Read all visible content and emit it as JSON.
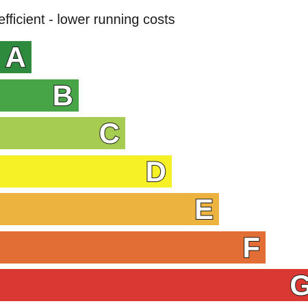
{
  "header": {
    "text": "efficient - lower running costs"
  },
  "bands": [
    {
      "letter": "A",
      "color": "#2e8b3e"
    },
    {
      "letter": "B",
      "color": "#47a547"
    },
    {
      "letter": "C",
      "color": "#a6cc52"
    },
    {
      "letter": "D",
      "color": "#f6f027"
    },
    {
      "letter": "E",
      "color": "#ecb33f"
    },
    {
      "letter": "F",
      "color": "#e36e35"
    },
    {
      "letter": "G",
      "color": "#d93833"
    }
  ]
}
